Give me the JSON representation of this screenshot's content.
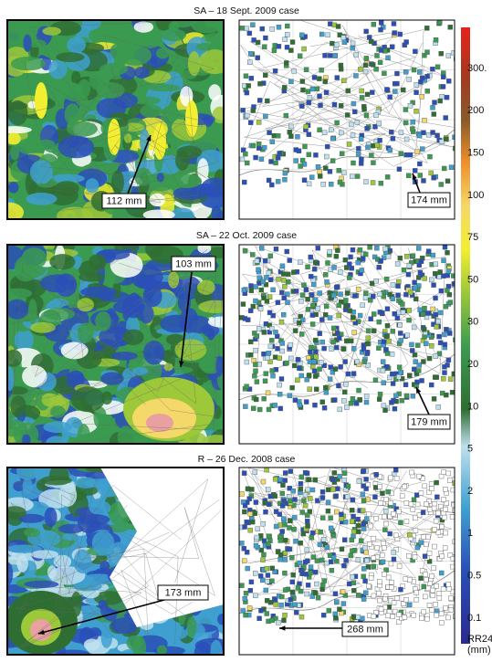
{
  "panels": [
    {
      "title": "SA – 18 Sept. 2009 case",
      "left_annotation": "112 mm",
      "right_annotation": "174 mm"
    },
    {
      "title": "SA – 22 Oct. 2009 case",
      "left_annotation": "103 mm",
      "right_annotation": "179 mm"
    },
    {
      "title": "R – 26 Dec. 2008 case",
      "left_annotation": "173 mm",
      "right_annotation": "268 mm"
    }
  ],
  "colorbar": {
    "labels": [
      "300.",
      "200",
      "150",
      "100",
      "75",
      "50",
      "30",
      "20",
      "10",
      "5",
      "2",
      "1",
      "0.5",
      "0.1"
    ],
    "title": "RR24",
    "unit": "(mm)"
  }
}
